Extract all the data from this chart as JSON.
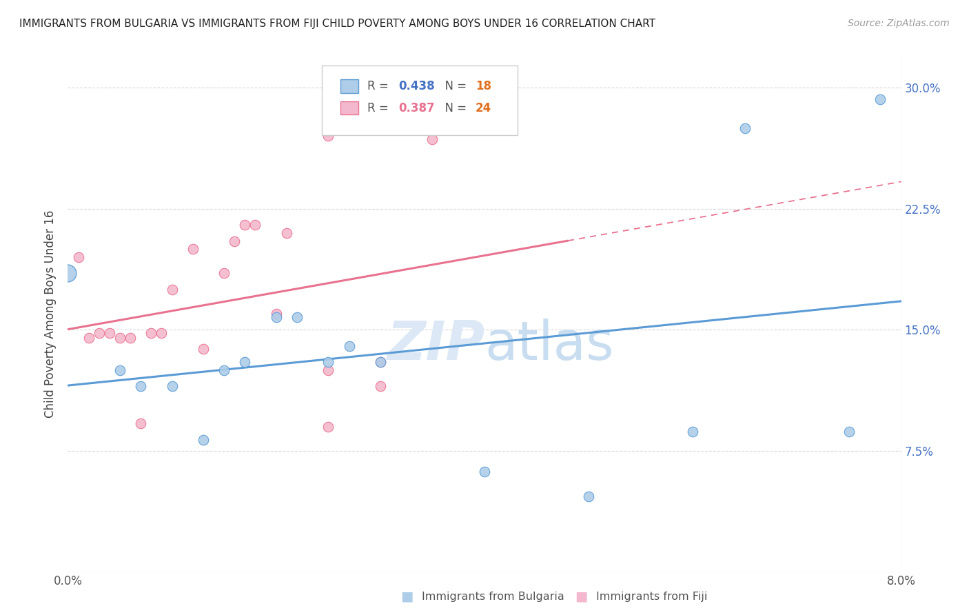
{
  "title": "IMMIGRANTS FROM BULGARIA VS IMMIGRANTS FROM FIJI CHILD POVERTY AMONG BOYS UNDER 16 CORRELATION CHART",
  "source": "Source: ZipAtlas.com",
  "ylabel": "Child Poverty Among Boys Under 16",
  "xlim": [
    0.0,
    0.08
  ],
  "ylim": [
    0.0,
    0.32
  ],
  "yticks": [
    0.0,
    0.075,
    0.15,
    0.225,
    0.3
  ],
  "ytick_labels": [
    "",
    "7.5%",
    "15.0%",
    "22.5%",
    "30.0%"
  ],
  "xticks": [
    0.0,
    0.01,
    0.02,
    0.03,
    0.04,
    0.05,
    0.06,
    0.07,
    0.08
  ],
  "xtick_labels_show": {
    "0.0": "0.0%",
    "0.08": "8.0%"
  },
  "watermark_zip": "ZIP",
  "watermark_atlas": "atlas",
  "bulgaria_color": "#aecde8",
  "fiji_color": "#f4b8ce",
  "bulgaria_edge": "#5b9bd5",
  "fiji_edge": "#e8728f",
  "bulgaria_R": 0.438,
  "bulgaria_N": 18,
  "fiji_R": 0.387,
  "fiji_N": 24,
  "background_color": "#ffffff",
  "grid_color": "#d8d8d8",
  "bulgaria_x": [
    0.0,
    0.005,
    0.007,
    0.01,
    0.013,
    0.015,
    0.017,
    0.02,
    0.022,
    0.025,
    0.027,
    0.03,
    0.04,
    0.05,
    0.06,
    0.065,
    0.075,
    0.078
  ],
  "bulgaria_y": [
    0.185,
    0.125,
    0.115,
    0.115,
    0.082,
    0.125,
    0.13,
    0.158,
    0.158,
    0.13,
    0.14,
    0.13,
    0.062,
    0.047,
    0.087,
    0.275,
    0.087,
    0.293
  ],
  "fiji_x": [
    0.001,
    0.002,
    0.003,
    0.004,
    0.005,
    0.006,
    0.007,
    0.008,
    0.009,
    0.01,
    0.012,
    0.013,
    0.015,
    0.016,
    0.017,
    0.018,
    0.02,
    0.021,
    0.025,
    0.025,
    0.025,
    0.03,
    0.03,
    0.035
  ],
  "fiji_y": [
    0.195,
    0.145,
    0.148,
    0.148,
    0.145,
    0.145,
    0.092,
    0.148,
    0.148,
    0.175,
    0.2,
    0.138,
    0.185,
    0.205,
    0.215,
    0.215,
    0.16,
    0.21,
    0.27,
    0.09,
    0.125,
    0.13,
    0.115,
    0.268
  ],
  "marker_size": 110,
  "large_marker_size": 320,
  "trendline_fiji_solid_end": 0.048,
  "blue_label_color": "#4472c4",
  "pink_label_color": "#e8728f",
  "orange_label_color": "#e07020"
}
